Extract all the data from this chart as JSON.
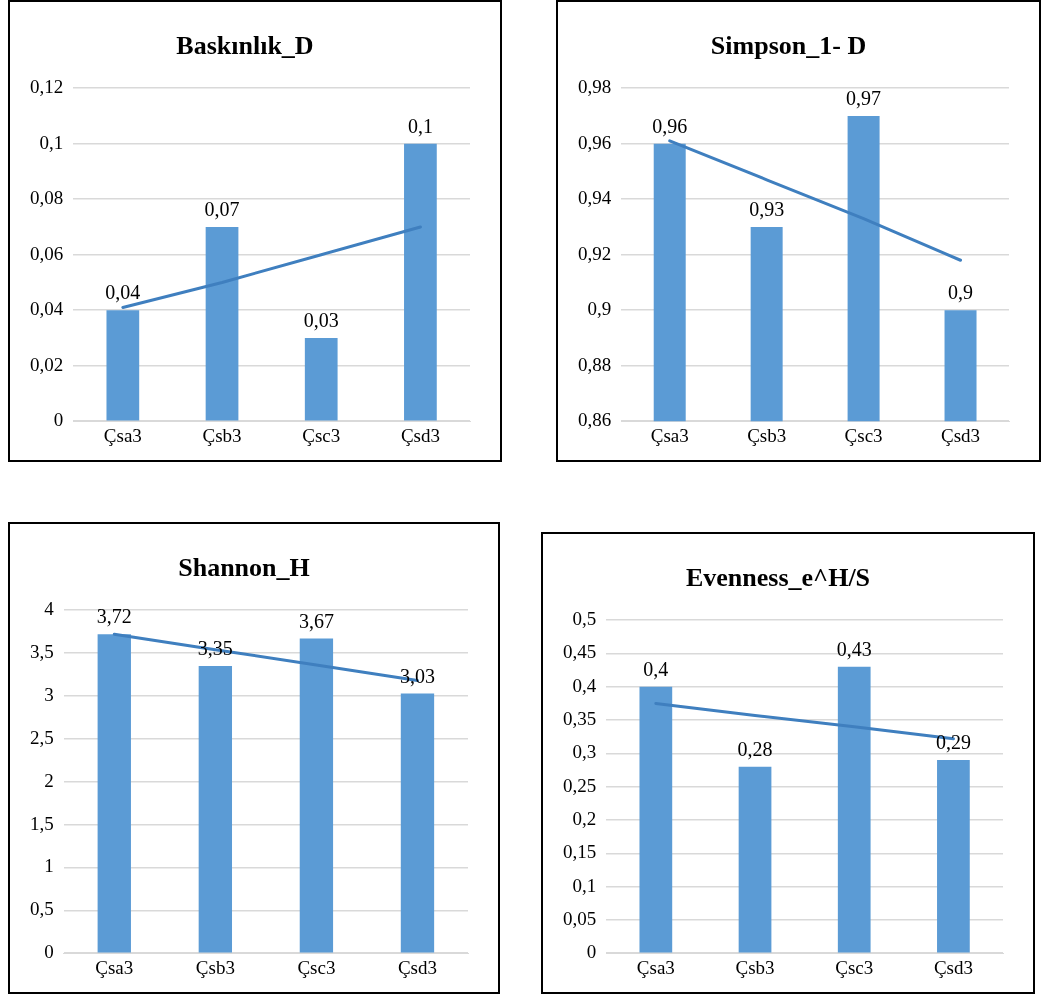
{
  "chart_data": [
    {
      "type": "bar",
      "title": "Baskınlık_D",
      "categories": [
        "Çsa3",
        "Çsb3",
        "Çsc3",
        "Çsd3"
      ],
      "ylim": [
        0,
        0.12
      ],
      "yticks": [
        0,
        {
          "value": 0.02,
          "label": "0,02"
        },
        {
          "value": 0.04,
          "label": "0,04"
        },
        {
          "value": 0.06,
          "label": "0,06"
        },
        {
          "value": 0.08,
          "label": "0,08"
        },
        {
          "value": 0.1,
          "label": "0,1"
        },
        {
          "value": 0.12,
          "label": "0,12"
        }
      ],
      "grid": "y",
      "legend": false,
      "series": [
        {
          "color": "#5b9bd5",
          "values": [
            0.04,
            0.07,
            0.03,
            0.1
          ],
          "value_labels": [
            "0,04",
            "0,07",
            "0,03",
            "0,1"
          ]
        },
        {
          "type": "line",
          "color": "#3f7fbf",
          "values": [
            0.041,
            0.05,
            0.06,
            0.07
          ]
        }
      ]
    },
    {
      "type": "bar",
      "title": "Simpson_1- D",
      "categories": [
        "Çsa3",
        "Çsb3",
        "Çsc3",
        "Çsd3"
      ],
      "ylim": [
        0.86,
        0.98
      ],
      "yticks": [
        {
          "value": 0.86,
          "label": "0,86"
        },
        {
          "value": 0.88,
          "label": "0,88"
        },
        {
          "value": 0.9,
          "label": "0,9"
        },
        {
          "value": 0.92,
          "label": "0,92"
        },
        {
          "value": 0.94,
          "label": "0,94"
        },
        {
          "value": 0.96,
          "label": "0,96"
        },
        {
          "value": 0.98,
          "label": "0,98"
        }
      ],
      "grid": "y",
      "legend": false,
      "series": [
        {
          "color": "#5b9bd5",
          "values": [
            0.96,
            0.93,
            0.97,
            0.9
          ],
          "value_labels": [
            "0,96",
            "0,93",
            "0,97",
            "0,9"
          ]
        },
        {
          "type": "line",
          "color": "#3f7fbf",
          "values": [
            0.961,
            0.947,
            0.933,
            0.918
          ]
        }
      ]
    },
    {
      "type": "bar",
      "title": "Shannon_H",
      "categories": [
        "Çsa3",
        "Çsb3",
        "Çsc3",
        "Çsd3"
      ],
      "ylim": [
        0,
        4
      ],
      "yticks": [
        0,
        {
          "value": 0.5,
          "label": "0,5"
        },
        1,
        {
          "value": 1.5,
          "label": "1,5"
        },
        2,
        {
          "value": 2.5,
          "label": "2,5"
        },
        3,
        {
          "value": 3.5,
          "label": "3,5"
        },
        4
      ],
      "grid": "y",
      "legend": false,
      "series": [
        {
          "color": "#5b9bd5",
          "values": [
            3.72,
            3.35,
            3.67,
            3.03
          ],
          "value_labels": [
            "3,72",
            "3,35",
            "3,67",
            "3,03"
          ]
        },
        {
          "type": "line",
          "color": "#3f7fbf",
          "values": [
            3.72,
            3.54,
            3.36,
            3.18
          ]
        }
      ]
    },
    {
      "type": "bar",
      "title": "Evenness_e^H/S",
      "categories": [
        "Çsa3",
        "Çsb3",
        "Çsc3",
        "Çsd3"
      ],
      "ylim": [
        0,
        0.5
      ],
      "yticks": [
        0,
        {
          "value": 0.05,
          "label": "0,05"
        },
        {
          "value": 0.1,
          "label": "0,1"
        },
        {
          "value": 0.15,
          "label": "0,15"
        },
        {
          "value": 0.2,
          "label": "0,2"
        },
        {
          "value": 0.25,
          "label": "0,25"
        },
        {
          "value": 0.3,
          "label": "0,3"
        },
        {
          "value": 0.35,
          "label": "0,35"
        },
        {
          "value": 0.4,
          "label": "0,4"
        },
        {
          "value": 0.45,
          "label": "0,45"
        },
        {
          "value": 0.5,
          "label": "0,5"
        }
      ],
      "grid": "y",
      "legend": false,
      "series": [
        {
          "color": "#5b9bd5",
          "values": [
            0.4,
            0.28,
            0.43,
            0.29
          ],
          "value_labels": [
            "0,4",
            "0,28",
            "0,43",
            "0,29"
          ]
        },
        {
          "type": "line",
          "color": "#3f7fbf",
          "values": [
            0.375,
            0.357,
            0.34,
            0.322
          ]
        }
      ]
    }
  ]
}
